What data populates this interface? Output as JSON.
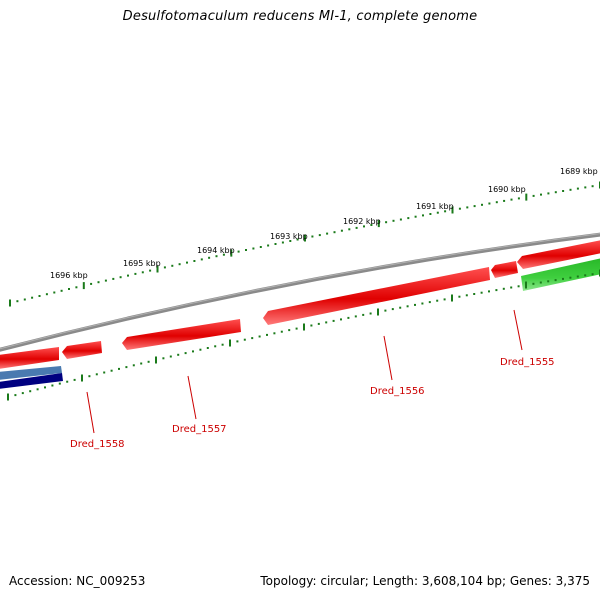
{
  "title": "Desulfotomaculum reducens MI-1, complete genome",
  "footer": {
    "accession": "Accession: NC_009253",
    "summary": "Topology: circular; Length: 3,608,104 bp; Genes: 3,375"
  },
  "colors": {
    "backbone": "#808080",
    "gene_reverse": "#ff0000",
    "gene_forward": "#33cc33",
    "gene_blue": "#4a7ab0",
    "gene_navy": "#000080",
    "tick": "#1a7a1a",
    "label": "#cc0000"
  },
  "scale": {
    "kbp_labels": [
      "1689 kbp",
      "1690 kbp",
      "1691 kbp",
      "1692 kbp",
      "1693 kbp",
      "1694 kbp",
      "1695 kbp",
      "1696 kbp"
    ]
  },
  "genes": [
    {
      "id": "Dred_1555",
      "label": "Dred_1555"
    },
    {
      "id": "Dred_1556",
      "label": "Dred_1556"
    },
    {
      "id": "Dred_1557",
      "label": "Dred_1557"
    },
    {
      "id": "Dred_1558",
      "label": "Dred_1558"
    }
  ]
}
